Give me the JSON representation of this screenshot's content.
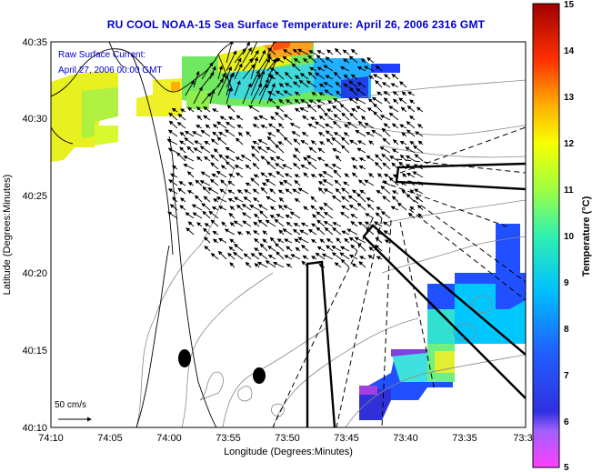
{
  "title": "RU COOL  NOAA-15  Sea Surface Temperature:  April 26, 2006 2316 GMT",
  "note": {
    "line1": "Raw Surface Current:",
    "line2": "April 27, 2006 00:00 GMT"
  },
  "scale_label": "50 cm/s",
  "xaxis": {
    "label": "Longitude (Degrees:Minutes)",
    "ticks": [
      "74:10",
      "74:05",
      "74:00",
      "73:55",
      "73:50",
      "73:45",
      "73:40",
      "73:35",
      "73:3"
    ]
  },
  "yaxis": {
    "label": "Latitude (Degrees:Minutes)",
    "ticks": [
      "40:35",
      "40:30",
      "40:25",
      "40:20",
      "40:15",
      "40:10"
    ]
  },
  "colorbar": {
    "label": "Temperature (°C)",
    "ticks": [
      "15",
      "14",
      "13",
      "12",
      "11",
      "10",
      "9",
      "8",
      "7",
      "6",
      "5"
    ]
  },
  "colors": {
    "title": "#0000cc",
    "vector": "#000000",
    "coast": "#000000"
  }
}
